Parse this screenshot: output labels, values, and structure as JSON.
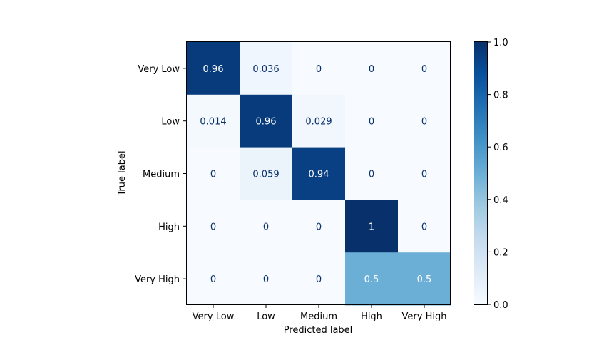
{
  "chart_data": {
    "type": "heatmap",
    "title": "",
    "xlabel": "Predicted label",
    "ylabel": "True label",
    "x_categories": [
      "Very Low",
      "Low",
      "Medium",
      "High",
      "Very High"
    ],
    "y_categories": [
      "Very Low",
      "Low",
      "Medium",
      "High",
      "Very High"
    ],
    "values": [
      [
        0.96,
        0.036,
        0,
        0,
        0
      ],
      [
        0.014,
        0.96,
        0.029,
        0,
        0
      ],
      [
        0,
        0.059,
        0.94,
        0,
        0
      ],
      [
        0,
        0,
        0,
        1,
        0
      ],
      [
        0,
        0,
        0,
        0.5,
        0.5
      ]
    ],
    "value_labels": [
      [
        "0.96",
        "0.036",
        "0",
        "0",
        "0"
      ],
      [
        "0.014",
        "0.96",
        "0.029",
        "0",
        "0"
      ],
      [
        "0",
        "0.059",
        "0.94",
        "0",
        "0"
      ],
      [
        "0",
        "0",
        "0",
        "1",
        "0"
      ],
      [
        "0",
        "0",
        "0",
        "0.5",
        "0.5"
      ]
    ],
    "colormap": "Blues",
    "colorbar": {
      "range": [
        0,
        1
      ],
      "ticks": [
        0.0,
        0.2,
        0.4,
        0.6,
        0.8,
        1.0
      ],
      "tick_labels": [
        "0.0",
        "0.2",
        "0.4",
        "0.6",
        "0.8",
        "1.0"
      ]
    },
    "grid": false
  }
}
